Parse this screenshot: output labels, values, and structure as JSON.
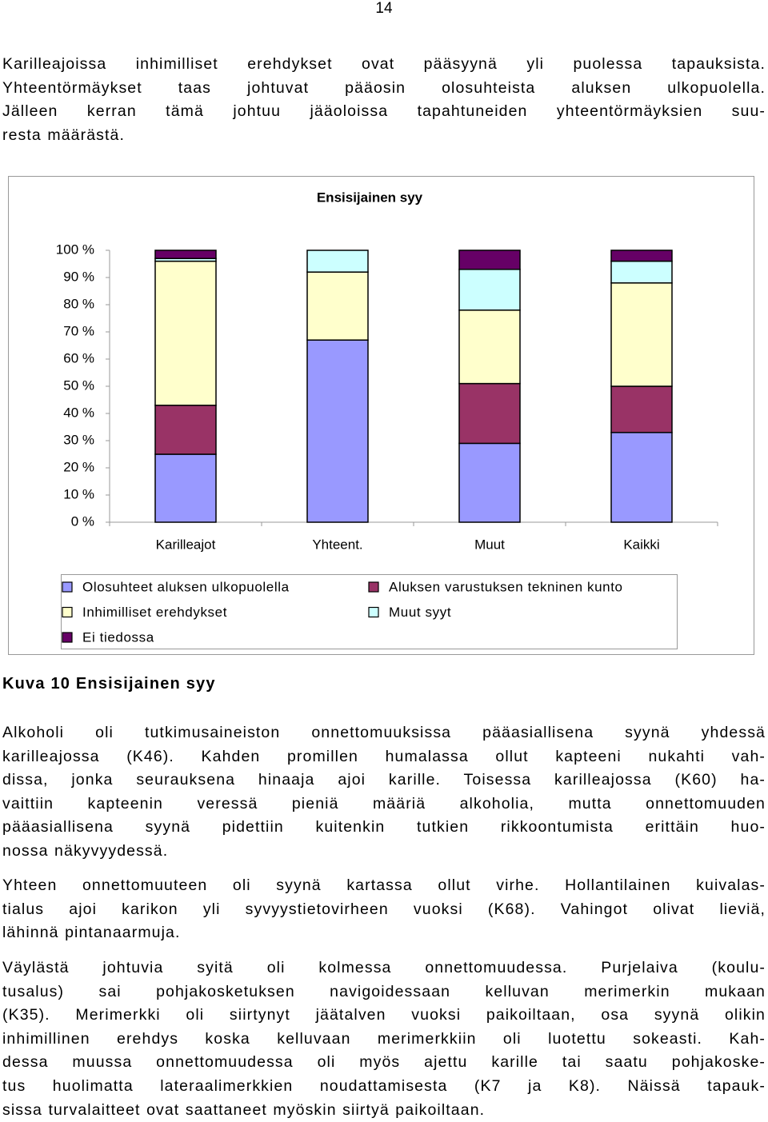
{
  "page_number": "14",
  "paragraphs": [
    {
      "lines": [
        "Karilleajoissa inhimilliset erehdykset ovat pääsyynä yli puolessa tapauksista.",
        "Yhteentörmäykset taas johtuvat pääosin olosuhteista aluksen ulkopuolella.",
        "Jälleen kerran tämä johtuu jääoloissa tapahtuneiden yhteentörmäyksien suu-",
        "resta määrästä."
      ]
    },
    {
      "lines": [
        "Alkoholi oli tutkimusaineiston onnettomuuksissa pääasiallisena syynä yhdessä",
        "karilleajossa (K46). Kahden promillen humalassa ollut kapteeni nukahti vah-",
        "dissa, jonka seurauksena hinaaja ajoi karille. Toisessa karilleajossa (K60) ha-",
        "vaittiin kapteenin veressä pieniä määriä alkoholia, mutta onnettomuuden",
        "pääasiallisena syynä pidettiin kuitenkin tutkien rikkoontumista erittäin huo-",
        "nossa näkyvyydessä."
      ]
    },
    {
      "lines": [
        "Yhteen onnettomuuteen oli syynä kartassa ollut virhe. Hollantilainen kuivalas-",
        "tialus ajoi karikon yli syvyystietovirheen vuoksi (K68). Vahingot olivat lieviä,",
        "lähinnä pintanaarmuja."
      ]
    },
    {
      "lines": [
        "Väylästä johtuvia syitä oli kolmessa onnettomuudessa. Purjelaiva (koulu-",
        "tusalus) sai pohjakosketuksen navigoidessaan kelluvan merimerkin mukaan",
        "(K35). Merimerkki oli siirtynyt jäätalven vuoksi paikoiltaan, osa syynä olikin",
        "inhimillinen erehdys koska kelluvaan merimerkkiin oli luotettu sokeasti. Kah-",
        "dessa muussa onnettomuudessa oli myös ajettu karille tai saatu pohjakoske-",
        "tus huolimatta lateraalimerkkien noudattamisesta (K7 ja K8). Näissä tapauk-",
        "sissa turvalaitteet ovat saattaneet myöskin siirtyä paikoiltaan."
      ]
    }
  ],
  "caption": "Kuva 10 Ensisijainen syy",
  "chart_data": {
    "type": "stacked_bar",
    "title": "Ensisijainen syy",
    "categories": [
      "Karilleajot",
      "Yhteent.",
      "Muut",
      "Kaikki"
    ],
    "series": [
      {
        "name": "Olosuhteet aluksen ulkopuolella",
        "color": "#9999ff",
        "values": [
          25,
          67,
          29,
          33
        ]
      },
      {
        "name": "Aluksen varustuksen tekninen kunto",
        "color": "#993366",
        "values": [
          18,
          0,
          22,
          17
        ]
      },
      {
        "name": "Inhimilliset erehdykset",
        "color": "#ffffcc",
        "values": [
          53,
          25,
          27,
          38
        ]
      },
      {
        "name": "Muut syyt",
        "color": "#ccffff",
        "values": [
          1,
          8,
          15,
          8
        ]
      },
      {
        "name": "Ei tiedossa",
        "color": "#660066",
        "values": [
          3,
          0,
          7,
          4
        ]
      }
    ],
    "ylim": [
      0,
      100
    ],
    "yticks": [
      {
        "value": 0,
        "label": "0 %"
      },
      {
        "value": 10,
        "label": "10 %"
      },
      {
        "value": 20,
        "label": "20 %"
      },
      {
        "value": 30,
        "label": "30 %"
      },
      {
        "value": 40,
        "label": "40 %"
      },
      {
        "value": 50,
        "label": "50 %"
      },
      {
        "value": 60,
        "label": "60 %"
      },
      {
        "value": 70,
        "label": "70 %"
      },
      {
        "value": 80,
        "label": "80 %"
      },
      {
        "value": 90,
        "label": "90 %"
      },
      {
        "value": 100,
        "label": "100 %"
      }
    ],
    "grid": false,
    "legend": "bottom"
  }
}
